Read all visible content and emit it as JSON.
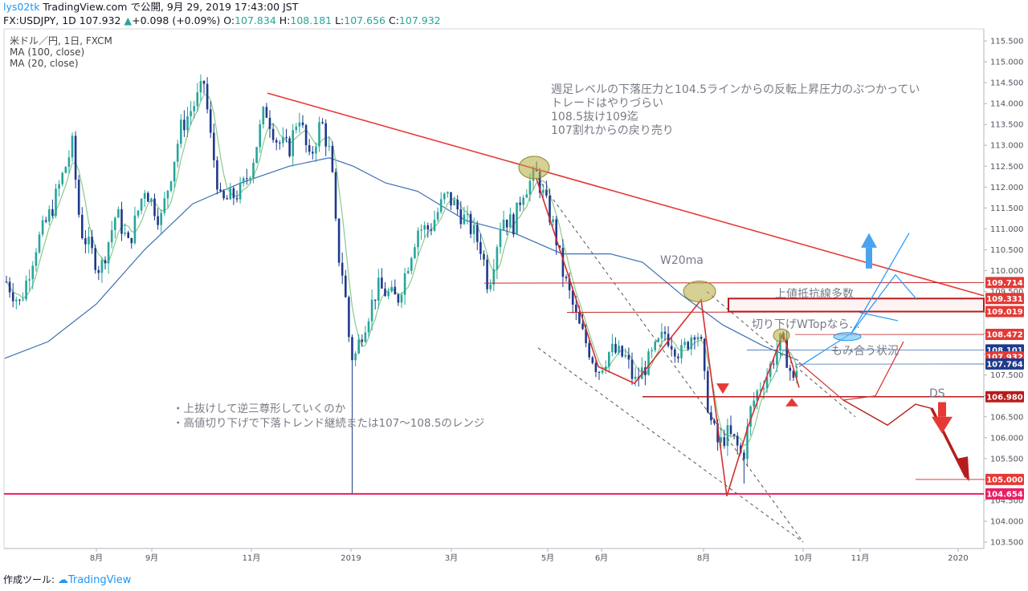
{
  "header": {
    "user": "lys02tk",
    "published": "TradingView.com で公開, 9月 29, 2019 17:43:00 JST",
    "symbol": "FX:USDJPY, 1D",
    "last": "107.932",
    "change": "+0.098 (+0.09%)",
    "o_label": "O:",
    "o_value": "107.834",
    "h_label": "H:",
    "h_value": "108.181",
    "l_label": "L:",
    "l_value": "107.656",
    "c_label": "C:",
    "c_value": "107.932"
  },
  "legend": {
    "line1": "米ドル／円, 1日, FXCM",
    "line2": "MA (100, close)",
    "line3": "MA (20, close)"
  },
  "footer": {
    "label": "作成ツール:",
    "brand": "TradingView"
  },
  "colors": {
    "up": "#26a69a",
    "down": "#1e3a8a",
    "ma100": "#3d6fb4",
    "ma20": "#8bc98b",
    "trend": "#e53935",
    "annotation": "#c62828",
    "blue_arrow": "#2196f3"
  },
  "chart_data": {
    "type": "candlestick",
    "series": [
      {
        "name": "米ドル／円, 1日, FXCM"
      },
      {
        "name": "MA (100, close)"
      },
      {
        "name": "MA (20, close)"
      }
    ],
    "ylim": [
      103.5,
      115.5
    ],
    "y_ticks": [
      "115.500",
      "115.000",
      "114.500",
      "114.000",
      "113.500",
      "113.000",
      "112.500",
      "112.000",
      "111.500",
      "111.000",
      "110.500",
      "110.000",
      "109.500",
      "109.000",
      "108.500",
      "108.000",
      "107.500",
      "107.000",
      "106.500",
      "106.000",
      "105.500",
      "105.000",
      "104.500",
      "104.000",
      "103.500"
    ],
    "x_ticks": [
      "8月",
      "9月",
      "11月",
      "2019",
      "3月",
      "5月",
      "6月",
      "8月",
      "10月",
      "11月",
      "2020"
    ],
    "price_labels": [
      {
        "value": "109.714",
        "color": "#e53935"
      },
      {
        "value": "109.331",
        "color": "#e53935"
      },
      {
        "value": "109.019",
        "color": "#e53935"
      },
      {
        "value": "108.472",
        "color": "#e53935"
      },
      {
        "value": "108.101",
        "color": "#1e3a8a"
      },
      {
        "value": "107.932",
        "color": "#e53935"
      },
      {
        "value": "107.764",
        "color": "#1e3a8a"
      },
      {
        "value": "106.980",
        "color": "#b71c1c"
      },
      {
        "value": "105.000",
        "color": "#e53935"
      },
      {
        "value": "104.654",
        "color": "#e91e63"
      }
    ],
    "annotations": [
      "週足レベルの下落圧力と104.5ラインからの反転上昇圧力のぶつかってい",
      "トレードはやりづらい",
      "108.5抜け109迄",
      "107割れからの戻り売り",
      "W20ma",
      "上値抵抗線多数",
      "切り下げWTopなら...",
      "もみ合う状況",
      "DS",
      "・上抜けして逆三尊形していくのか",
      "・高値切り下げで下落トレンド継続または107〜108.5のレンジ"
    ]
  }
}
